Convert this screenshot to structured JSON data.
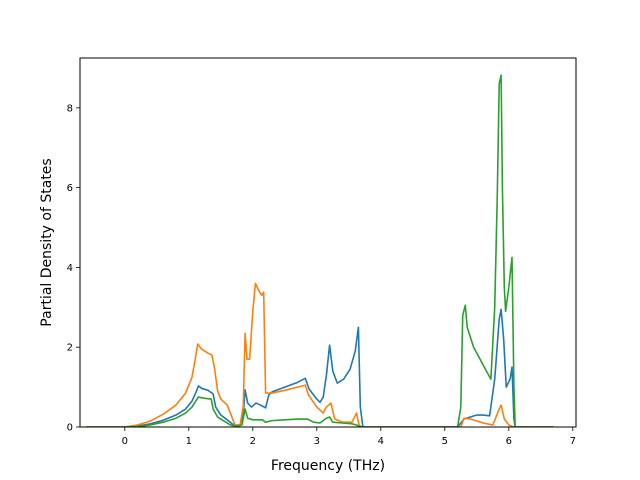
{
  "chart_data": {
    "type": "line",
    "title": "",
    "xlabel": "Frequency (THz)",
    "ylabel": "Partial Density of States",
    "xlim": [
      -0.7,
      7.05
    ],
    "ylim": [
      0,
      9.25
    ],
    "xticks": [
      0,
      1,
      2,
      3,
      4,
      5,
      6,
      7
    ],
    "yticks": [
      0,
      2,
      4,
      6,
      8
    ],
    "grid": false,
    "legend": "none",
    "series": [
      {
        "color": "#1f77b4",
        "points": [
          [
            -0.6,
            0
          ],
          [
            0,
            0
          ],
          [
            0.2,
            0.02
          ],
          [
            0.4,
            0.08
          ],
          [
            0.6,
            0.17
          ],
          [
            0.8,
            0.3
          ],
          [
            0.95,
            0.45
          ],
          [
            1.05,
            0.65
          ],
          [
            1.12,
            0.9
          ],
          [
            1.15,
            1.03
          ],
          [
            1.2,
            0.97
          ],
          [
            1.3,
            0.92
          ],
          [
            1.38,
            0.83
          ],
          [
            1.42,
            0.5
          ],
          [
            1.5,
            0.3
          ],
          [
            1.6,
            0.18
          ],
          [
            1.7,
            0.05
          ],
          [
            1.8,
            0.05
          ],
          [
            1.85,
            0.3
          ],
          [
            1.88,
            0.93
          ],
          [
            1.92,
            0.6
          ],
          [
            1.98,
            0.5
          ],
          [
            2.05,
            0.6
          ],
          [
            2.12,
            0.55
          ],
          [
            2.2,
            0.48
          ],
          [
            2.25,
            0.8
          ],
          [
            2.3,
            0.88
          ],
          [
            2.5,
            1.0
          ],
          [
            2.7,
            1.12
          ],
          [
            2.82,
            1.22
          ],
          [
            2.88,
            0.95
          ],
          [
            3.0,
            0.7
          ],
          [
            3.05,
            0.62
          ],
          [
            3.1,
            0.75
          ],
          [
            3.15,
            1.3
          ],
          [
            3.2,
            2.05
          ],
          [
            3.25,
            1.4
          ],
          [
            3.32,
            1.1
          ],
          [
            3.42,
            1.2
          ],
          [
            3.52,
            1.45
          ],
          [
            3.6,
            1.9
          ],
          [
            3.65,
            2.5
          ],
          [
            3.68,
            0.5
          ],
          [
            3.72,
            0
          ],
          [
            5.2,
            0
          ],
          [
            5.3,
            0.2
          ],
          [
            5.4,
            0.25
          ],
          [
            5.5,
            0.3
          ],
          [
            5.6,
            0.3
          ],
          [
            5.7,
            0.28
          ],
          [
            5.78,
            1.2
          ],
          [
            5.85,
            2.7
          ],
          [
            5.88,
            2.95
          ],
          [
            5.92,
            2.2
          ],
          [
            5.96,
            1.0
          ],
          [
            6.02,
            1.2
          ],
          [
            6.05,
            1.5
          ],
          [
            6.08,
            0.2
          ],
          [
            6.1,
            0
          ],
          [
            6.7,
            0
          ]
        ]
      },
      {
        "color": "#ff7f0e",
        "points": [
          [
            -0.6,
            0
          ],
          [
            0,
            0
          ],
          [
            0.2,
            0.05
          ],
          [
            0.4,
            0.15
          ],
          [
            0.6,
            0.32
          ],
          [
            0.8,
            0.55
          ],
          [
            0.95,
            0.85
          ],
          [
            1.05,
            1.25
          ],
          [
            1.1,
            1.7
          ],
          [
            1.14,
            2.08
          ],
          [
            1.2,
            1.95
          ],
          [
            1.3,
            1.85
          ],
          [
            1.36,
            1.8
          ],
          [
            1.4,
            1.5
          ],
          [
            1.45,
            0.9
          ],
          [
            1.5,
            0.7
          ],
          [
            1.6,
            0.55
          ],
          [
            1.65,
            0.35
          ],
          [
            1.72,
            0.05
          ],
          [
            1.8,
            0.05
          ],
          [
            1.85,
            0.5
          ],
          [
            1.88,
            2.35
          ],
          [
            1.91,
            1.7
          ],
          [
            1.95,
            1.7
          ],
          [
            2.0,
            2.9
          ],
          [
            2.04,
            3.6
          ],
          [
            2.1,
            3.4
          ],
          [
            2.14,
            3.3
          ],
          [
            2.17,
            3.38
          ],
          [
            2.2,
            0.85
          ],
          [
            2.3,
            0.85
          ],
          [
            2.5,
            0.92
          ],
          [
            2.7,
            1.0
          ],
          [
            2.82,
            1.05
          ],
          [
            2.87,
            0.8
          ],
          [
            3.0,
            0.5
          ],
          [
            3.1,
            0.35
          ],
          [
            3.15,
            0.5
          ],
          [
            3.22,
            0.6
          ],
          [
            3.28,
            0.2
          ],
          [
            3.4,
            0.12
          ],
          [
            3.55,
            0.12
          ],
          [
            3.62,
            0.35
          ],
          [
            3.66,
            0.05
          ],
          [
            3.7,
            0
          ],
          [
            5.25,
            0
          ],
          [
            5.3,
            0.22
          ],
          [
            5.4,
            0.2
          ],
          [
            5.6,
            0.1
          ],
          [
            5.75,
            0.05
          ],
          [
            5.85,
            0.45
          ],
          [
            5.88,
            0.55
          ],
          [
            5.93,
            0.2
          ],
          [
            6.0,
            0.05
          ],
          [
            6.08,
            0
          ],
          [
            6.7,
            0
          ]
        ]
      },
      {
        "color": "#2ca02c",
        "points": [
          [
            -0.6,
            0
          ],
          [
            0,
            0
          ],
          [
            0.2,
            0.01
          ],
          [
            0.4,
            0.05
          ],
          [
            0.6,
            0.12
          ],
          [
            0.8,
            0.22
          ],
          [
            0.95,
            0.35
          ],
          [
            1.05,
            0.5
          ],
          [
            1.12,
            0.68
          ],
          [
            1.15,
            0.75
          ],
          [
            1.25,
            0.72
          ],
          [
            1.35,
            0.7
          ],
          [
            1.38,
            0.45
          ],
          [
            1.45,
            0.25
          ],
          [
            1.55,
            0.15
          ],
          [
            1.65,
            0.05
          ],
          [
            1.75,
            0.02
          ],
          [
            1.83,
            0.05
          ],
          [
            1.88,
            0.45
          ],
          [
            1.92,
            0.22
          ],
          [
            2.0,
            0.18
          ],
          [
            2.15,
            0.18
          ],
          [
            2.2,
            0.12
          ],
          [
            2.3,
            0.16
          ],
          [
            2.5,
            0.18
          ],
          [
            2.7,
            0.2
          ],
          [
            2.85,
            0.2
          ],
          [
            2.95,
            0.12
          ],
          [
            3.05,
            0.1
          ],
          [
            3.15,
            0.22
          ],
          [
            3.2,
            0.25
          ],
          [
            3.25,
            0.12
          ],
          [
            3.4,
            0.1
          ],
          [
            3.55,
            0.08
          ],
          [
            3.62,
            0.05
          ],
          [
            3.7,
            0
          ],
          [
            5.2,
            0
          ],
          [
            5.25,
            0.5
          ],
          [
            5.28,
            2.8
          ],
          [
            5.32,
            3.05
          ],
          [
            5.35,
            2.5
          ],
          [
            5.45,
            2.0
          ],
          [
            5.55,
            1.7
          ],
          [
            5.65,
            1.4
          ],
          [
            5.72,
            1.2
          ],
          [
            5.78,
            3.0
          ],
          [
            5.82,
            5.8
          ],
          [
            5.85,
            8.6
          ],
          [
            5.88,
            8.82
          ],
          [
            5.9,
            6.0
          ],
          [
            5.93,
            3.5
          ],
          [
            5.95,
            2.9
          ],
          [
            6.0,
            3.5
          ],
          [
            6.05,
            4.25
          ],
          [
            6.08,
            1.0
          ],
          [
            6.1,
            0
          ],
          [
            6.7,
            0
          ]
        ]
      }
    ]
  }
}
